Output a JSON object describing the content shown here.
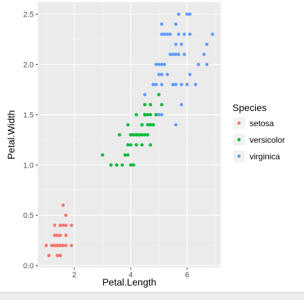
{
  "chart_data": {
    "type": "scatter",
    "title": "",
    "xlabel": "Petal.Length",
    "ylabel": "Petal.Width",
    "xlim": [
      0.705,
      7.195
    ],
    "ylim": [
      -0.02,
      2.62
    ],
    "x_ticks": [
      2,
      4,
      6
    ],
    "y_ticks": [
      0.0,
      0.5,
      1.0,
      1.5,
      2.0,
      2.5
    ],
    "y_tick_labels": [
      "0.0",
      "0.5",
      "1.0",
      "1.5",
      "2.0",
      "2.5"
    ],
    "grid": true,
    "legend": {
      "title": "Species",
      "placement": "right"
    },
    "series": [
      {
        "name": "setosa",
        "color": "#F8766D",
        "points": [
          [
            1.4,
            0.2
          ],
          [
            1.4,
            0.2
          ],
          [
            1.3,
            0.2
          ],
          [
            1.5,
            0.2
          ],
          [
            1.4,
            0.2
          ],
          [
            1.7,
            0.4
          ],
          [
            1.4,
            0.3
          ],
          [
            1.5,
            0.2
          ],
          [
            1.4,
            0.2
          ],
          [
            1.5,
            0.1
          ],
          [
            1.5,
            0.2
          ],
          [
            1.6,
            0.2
          ],
          [
            1.4,
            0.1
          ],
          [
            1.1,
            0.1
          ],
          [
            1.2,
            0.2
          ],
          [
            1.5,
            0.4
          ],
          [
            1.3,
            0.4
          ],
          [
            1.4,
            0.3
          ],
          [
            1.7,
            0.3
          ],
          [
            1.5,
            0.3
          ],
          [
            1.7,
            0.2
          ],
          [
            1.5,
            0.4
          ],
          [
            1.0,
            0.2
          ],
          [
            1.7,
            0.5
          ],
          [
            1.9,
            0.2
          ],
          [
            1.6,
            0.2
          ],
          [
            1.6,
            0.4
          ],
          [
            1.5,
            0.2
          ],
          [
            1.4,
            0.2
          ],
          [
            1.6,
            0.2
          ],
          [
            1.6,
            0.2
          ],
          [
            1.5,
            0.4
          ],
          [
            1.5,
            0.1
          ],
          [
            1.4,
            0.2
          ],
          [
            1.5,
            0.2
          ],
          [
            1.2,
            0.2
          ],
          [
            1.3,
            0.2
          ],
          [
            1.4,
            0.1
          ],
          [
            1.3,
            0.2
          ],
          [
            1.5,
            0.2
          ],
          [
            1.3,
            0.3
          ],
          [
            1.3,
            0.3
          ],
          [
            1.3,
            0.2
          ],
          [
            1.6,
            0.6
          ],
          [
            1.9,
            0.4
          ],
          [
            1.4,
            0.3
          ],
          [
            1.6,
            0.2
          ],
          [
            1.4,
            0.2
          ],
          [
            1.5,
            0.2
          ],
          [
            1.4,
            0.2
          ]
        ]
      },
      {
        "name": "versicolor",
        "color": "#00BA38",
        "points": [
          [
            4.7,
            1.4
          ],
          [
            4.5,
            1.5
          ],
          [
            4.9,
            1.5
          ],
          [
            4.0,
            1.3
          ],
          [
            4.6,
            1.5
          ],
          [
            4.5,
            1.3
          ],
          [
            4.7,
            1.6
          ],
          [
            3.3,
            1.0
          ],
          [
            4.6,
            1.3
          ],
          [
            3.9,
            1.4
          ],
          [
            3.5,
            1.0
          ],
          [
            4.2,
            1.5
          ],
          [
            4.0,
            1.0
          ],
          [
            4.7,
            1.4
          ],
          [
            3.6,
            1.3
          ],
          [
            4.4,
            1.4
          ],
          [
            4.5,
            1.5
          ],
          [
            4.1,
            1.0
          ],
          [
            4.5,
            1.5
          ],
          [
            3.9,
            1.1
          ],
          [
            4.8,
            1.8
          ],
          [
            4.0,
            1.3
          ],
          [
            4.9,
            1.5
          ],
          [
            4.7,
            1.2
          ],
          [
            4.3,
            1.3
          ],
          [
            4.4,
            1.4
          ],
          [
            4.8,
            1.4
          ],
          [
            5.0,
            1.7
          ],
          [
            4.5,
            1.5
          ],
          [
            3.5,
            1.0
          ],
          [
            3.8,
            1.1
          ],
          [
            3.7,
            1.0
          ],
          [
            3.9,
            1.2
          ],
          [
            5.1,
            1.6
          ],
          [
            4.5,
            1.5
          ],
          [
            4.5,
            1.6
          ],
          [
            4.7,
            1.5
          ],
          [
            4.4,
            1.3
          ],
          [
            4.1,
            1.3
          ],
          [
            4.0,
            1.3
          ],
          [
            4.4,
            1.2
          ],
          [
            4.6,
            1.4
          ],
          [
            4.0,
            1.2
          ],
          [
            3.3,
            1.0
          ],
          [
            4.2,
            1.3
          ],
          [
            4.2,
            1.2
          ],
          [
            4.2,
            1.3
          ],
          [
            4.3,
            1.3
          ],
          [
            3.0,
            1.1
          ],
          [
            4.1,
            1.3
          ]
        ]
      },
      {
        "name": "virginica",
        "color": "#619CFF",
        "points": [
          [
            6.0,
            2.5
          ],
          [
            5.1,
            1.9
          ],
          [
            5.9,
            2.1
          ],
          [
            5.6,
            1.8
          ],
          [
            5.8,
            2.2
          ],
          [
            6.6,
            2.1
          ],
          [
            4.5,
            1.7
          ],
          [
            6.3,
            1.8
          ],
          [
            5.8,
            1.8
          ],
          [
            6.1,
            2.5
          ],
          [
            5.1,
            2.0
          ],
          [
            5.3,
            1.9
          ],
          [
            5.5,
            2.1
          ],
          [
            5.0,
            2.0
          ],
          [
            5.1,
            2.4
          ],
          [
            5.3,
            2.3
          ],
          [
            5.5,
            1.8
          ],
          [
            6.7,
            2.2
          ],
          [
            6.9,
            2.3
          ],
          [
            5.0,
            1.5
          ],
          [
            5.7,
            2.3
          ],
          [
            4.9,
            2.0
          ],
          [
            6.7,
            2.0
          ],
          [
            4.9,
            1.8
          ],
          [
            5.7,
            2.1
          ],
          [
            6.0,
            1.8
          ],
          [
            4.8,
            1.8
          ],
          [
            4.9,
            1.8
          ],
          [
            5.6,
            2.1
          ],
          [
            5.8,
            1.6
          ],
          [
            6.1,
            1.9
          ],
          [
            6.4,
            2.0
          ],
          [
            5.6,
            2.2
          ],
          [
            5.1,
            1.5
          ],
          [
            5.6,
            1.4
          ],
          [
            6.1,
            2.3
          ],
          [
            5.6,
            2.4
          ],
          [
            5.5,
            1.8
          ],
          [
            4.8,
            1.8
          ],
          [
            5.4,
            2.1
          ],
          [
            5.6,
            2.4
          ],
          [
            5.1,
            2.3
          ],
          [
            5.1,
            1.9
          ],
          [
            5.9,
            2.3
          ],
          [
            5.7,
            2.5
          ],
          [
            5.2,
            2.3
          ],
          [
            5.0,
            1.9
          ],
          [
            5.2,
            2.0
          ],
          [
            5.4,
            2.3
          ],
          [
            5.1,
            1.8
          ]
        ]
      }
    ]
  },
  "colors": {
    "panel": "#EBEBEB",
    "grid_major": "#FFFFFF",
    "grid_minor": "#F5F5F5",
    "tick": "#333333"
  }
}
